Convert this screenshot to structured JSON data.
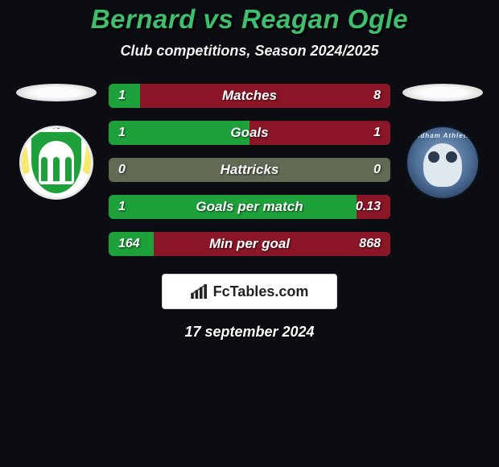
{
  "colors": {
    "background": "#0c0d12",
    "title": "#3fbf6e",
    "text": "#ffffff",
    "bar_base": "#616b54",
    "bar_player1": "#1ea13a",
    "bar_player2": "#8a1628",
    "brand_bg": "#ffffff"
  },
  "title": {
    "player1": "Bernard",
    "vs": "vs",
    "player2": "Reagan Ogle",
    "fontsize": 33
  },
  "subtitle": "Club competitions, Season 2024/2025",
  "rows": [
    {
      "label": "Matches",
      "left": "1",
      "right": "8",
      "left_pct": 11,
      "right_pct": 89
    },
    {
      "label": "Goals",
      "left": "1",
      "right": "1",
      "left_pct": 50,
      "right_pct": 50
    },
    {
      "label": "Hattricks",
      "left": "0",
      "right": "0",
      "left_pct": 0,
      "right_pct": 0
    },
    {
      "label": "Goals per match",
      "left": "1",
      "right": "0.13",
      "left_pct": 88,
      "right_pct": 12
    },
    {
      "label": "Min per goal",
      "left": "164",
      "right": "868",
      "left_pct": 16,
      "right_pct": 84
    }
  ],
  "brand": {
    "text": "FcTables.com"
  },
  "date": "17 september 2024",
  "crests": {
    "left_banner": "OVIL TOWN F",
    "right_ring": "Oldham Athletic"
  }
}
